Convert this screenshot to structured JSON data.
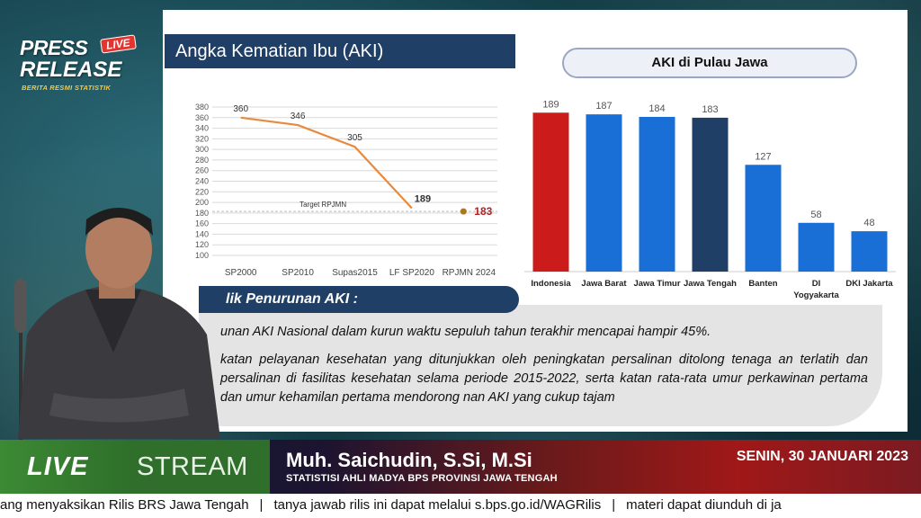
{
  "logo": {
    "press": "PRESS",
    "release": "RELEASE",
    "live_badge": "LIVE",
    "tagline": "BERITA RESMI STATISTIK"
  },
  "slide": {
    "title": "Angka Kematian Ibu (AKI)",
    "right_chart_title": "AKI di Pulau Jawa",
    "cause_heading": "Faktor-faktor Penurunan AKI :",
    "cause_heading_visible": "lik Penurunan AKI :",
    "bullet1": "unan AKI Nasional dalam kurun waktu sepuluh tahun terakhir mencapai hampir 45%.",
    "bullet2": "katan pelayanan kesehatan yang ditunjukkan oleh peningkatan persalinan ditolong tenaga an terlatih dan persalinan di fasilitas kesehatan selama periode 2015-2022, serta katan rata-rata umur perkawinan pertama dan umur kehamilan pertama mendorong nan AKI yang cukup tajam"
  },
  "chart_data": [
    {
      "type": "line",
      "categories": [
        "SP2000",
        "SP2010",
        "Supas2015",
        "LF SP2020",
        "RPJMN 2024"
      ],
      "series": [
        {
          "values": [
            360,
            346,
            305,
            189,
            null
          ],
          "color": "#e88a3c"
        }
      ],
      "target": {
        "category": "RPJMN 2024",
        "value": 183,
        "label": "Target RPJMN",
        "color": "#a8781e",
        "label_color": "#b22222"
      },
      "point_labels": [
        "360",
        "346",
        "305",
        "189",
        "183"
      ],
      "yticks": [
        100,
        120,
        140,
        160,
        180,
        200,
        220,
        240,
        260,
        280,
        300,
        320,
        340,
        360,
        380
      ],
      "ylim": [
        100,
        380
      ],
      "grid": true
    },
    {
      "type": "bar",
      "title": "AKI di Pulau Jawa",
      "categories": [
        "Indonesia",
        "Jawa Barat",
        "Jawa Timur",
        "Jawa Tengah",
        "Banten",
        "DI Yogyakarta",
        "DKI Jakarta"
      ],
      "values": [
        189,
        187,
        184,
        183,
        127,
        58,
        48
      ],
      "colors": [
        "#cc1b1b",
        "#1a6fd6",
        "#1a6fd6",
        "#1f3f66",
        "#1a6fd6",
        "#1a6fd6",
        "#1a6fd6"
      ],
      "ylim": [
        0,
        200
      ],
      "grid": false
    }
  ],
  "lower_third": {
    "live": "LIVE",
    "stream": "STREAM",
    "name": "Muh. Saichudin, S.Si, M.Si",
    "role": "STATISTISI AHLI MADYA BPS PROVINSI JAWA TENGAH",
    "date": "SENIN, 30 JANUARI 2023"
  },
  "ticker": {
    "item1": "ang menyaksikan Rilis BRS Jawa Tengah",
    "sep": "|",
    "item2": "tanya jawab rilis ini dapat melalui s.bps.go.id/WAGRilis",
    "item3": "materi dapat diunduh di ja"
  }
}
